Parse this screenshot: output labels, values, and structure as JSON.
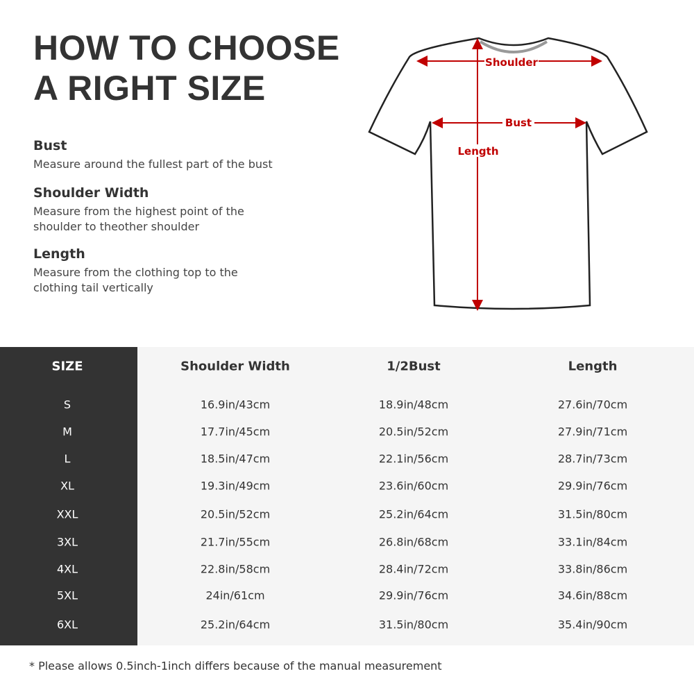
{
  "title": [
    "HOW TO CHOOSE",
    "A RIGHT SIZE"
  ],
  "measurements": [
    {
      "heading": "Bust",
      "text": "Measure around the fullest part of the bust"
    },
    {
      "heading": "Shoulder Width",
      "text": "Measure from the highest point of the shoulder to theother shoulder"
    },
    {
      "heading": "Length",
      "text": "Measure from the clothing top to the clothing tail vertically"
    }
  ],
  "diagram": {
    "shoulder_label": "Shoulder",
    "bust_label": "Bust",
    "length_label": "Length",
    "arrow_color": "#c00000"
  },
  "table": {
    "headers": [
      "SIZE",
      "Shoulder Width",
      "1/2Bust",
      "Length"
    ],
    "rows": [
      [
        "S",
        "16.9in/43cm",
        "18.9in/48cm",
        "27.6in/70cm"
      ],
      [
        "M",
        "17.7in/45cm",
        "20.5in/52cm",
        "27.9in/71cm"
      ],
      [
        "L",
        "18.5in/47cm",
        "22.1in/56cm",
        "28.7in/73cm"
      ],
      [
        "XL",
        "19.3in/49cm",
        "23.6in/60cm",
        "29.9in/76cm"
      ],
      [
        "XXL",
        "20.5in/52cm",
        "25.2in/64cm",
        "31.5in/80cm"
      ],
      [
        "3XL",
        "21.7in/55cm",
        "26.8in/68cm",
        "33.1in/84cm"
      ],
      [
        "4XL",
        "22.8in/58cm",
        "28.4in/72cm",
        "33.8in/86cm"
      ],
      [
        "5XL",
        "24in/61cm",
        "29.9in/76cm",
        "34.6in/88cm"
      ],
      [
        "6XL",
        "25.2in/64cm",
        "31.5in/80cm",
        "35.4in/90cm"
      ]
    ]
  },
  "note": "* Please allows 0.5inch-1inch differs because of the  manual measurement"
}
